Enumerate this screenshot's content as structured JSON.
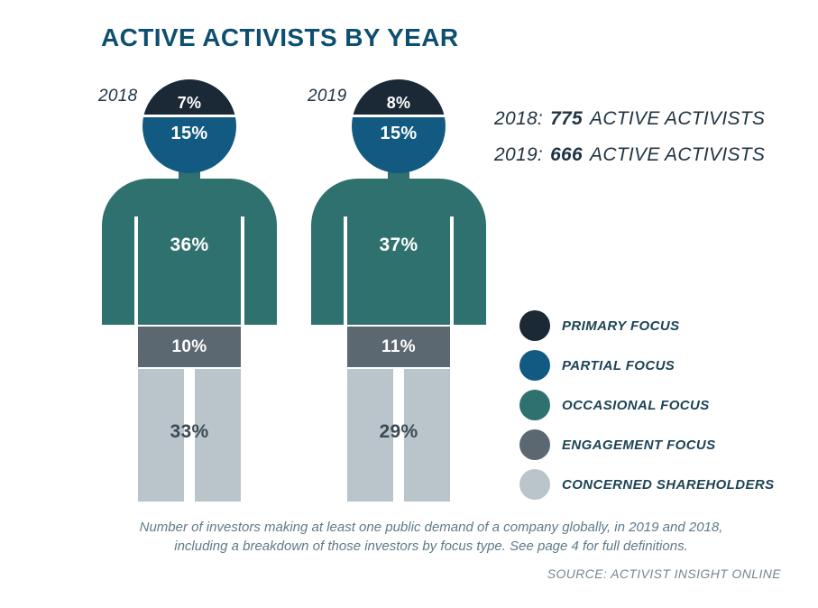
{
  "title": "ACTIVE ACTIVISTS BY YEAR",
  "figures": [
    {
      "year": "2018",
      "segments": {
        "primary": "7%",
        "partial": "15%",
        "occasional": "36%",
        "engagement": "10%",
        "concerned": "33%"
      }
    },
    {
      "year": "2019",
      "segments": {
        "primary": "8%",
        "partial": "15%",
        "occasional": "37%",
        "engagement": "11%",
        "concerned": "29%"
      }
    }
  ],
  "stats": [
    {
      "prefix": "2018:",
      "value": "775",
      "suffix": "ACTIVE ACTIVISTS"
    },
    {
      "prefix": "2019:",
      "value": "666",
      "suffix": "ACTIVE ACTIVISTS"
    }
  ],
  "legend": [
    {
      "label": "PRIMARY FOCUS",
      "color": "#1b2936"
    },
    {
      "label": "PARTIAL FOCUS",
      "color": "#135a82"
    },
    {
      "label": "OCCASIONAL FOCUS",
      "color": "#2e716e"
    },
    {
      "label": "ENGAGEMENT FOCUS",
      "color": "#5b6872"
    },
    {
      "label": "CONCERNED SHAREHOLDERS",
      "color": "#b9c5ca"
    }
  ],
  "footnote": {
    "line1": "Number of investors making at least one public demand of a company globally, in 2019 and 2018,",
    "line2": "including a breakdown of those investors by focus type. See page 4 for full definitions."
  },
  "source": "SOURCE: ACTIVIST INSIGHT ONLINE",
  "colors": {
    "title": "#0e4f70",
    "primary_focus": "#1b2936",
    "partial_focus": "#135a82",
    "occasional_focus": "#2e716e",
    "engagement_focus": "#5b6872",
    "concerned_shareholders": "#b9c5ca"
  },
  "chart_data": {
    "type": "bar",
    "variant": "stacked-pictogram-percent",
    "title": "ACTIVE ACTIVISTS BY YEAR",
    "unit": "percent",
    "legend_position": "right",
    "categories": [
      "PRIMARY FOCUS",
      "PARTIAL FOCUS",
      "OCCASIONAL FOCUS",
      "ENGAGEMENT FOCUS",
      "CONCERNED SHAREHOLDERS"
    ],
    "series": [
      {
        "name": "2018",
        "values": [
          7,
          15,
          36,
          10,
          33
        ],
        "total_active_activists": 775
      },
      {
        "name": "2019",
        "values": [
          8,
          15,
          37,
          11,
          29
        ],
        "total_active_activists": 666
      }
    ]
  }
}
